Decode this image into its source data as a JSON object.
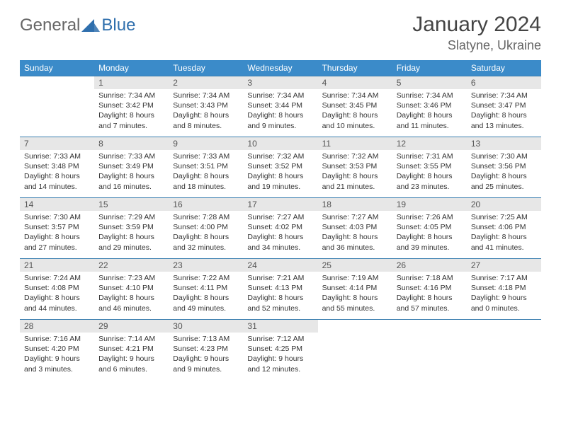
{
  "branding": {
    "word1": "General",
    "word2": "Blue",
    "logo_color_dark": "#666666",
    "logo_color_blue": "#2f6fad",
    "triangle_color": "#2f6fad"
  },
  "title": "January 2024",
  "location": "Slatyne, Ukraine",
  "colors": {
    "header_row_bg": "#3b8bc9",
    "header_row_text": "#ffffff",
    "daynum_bg": "#e7e7e7",
    "daynum_text": "#555555",
    "cell_divider": "#3b7fb0",
    "body_text": "#333333",
    "page_bg": "#ffffff"
  },
  "weekdays": [
    "Sunday",
    "Monday",
    "Tuesday",
    "Wednesday",
    "Thursday",
    "Friday",
    "Saturday"
  ],
  "weeks": [
    [
      null,
      {
        "n": "1",
        "sr": "Sunrise: 7:34 AM",
        "ss": "Sunset: 3:42 PM",
        "dl1": "Daylight: 8 hours",
        "dl2": "and 7 minutes."
      },
      {
        "n": "2",
        "sr": "Sunrise: 7:34 AM",
        "ss": "Sunset: 3:43 PM",
        "dl1": "Daylight: 8 hours",
        "dl2": "and 8 minutes."
      },
      {
        "n": "3",
        "sr": "Sunrise: 7:34 AM",
        "ss": "Sunset: 3:44 PM",
        "dl1": "Daylight: 8 hours",
        "dl2": "and 9 minutes."
      },
      {
        "n": "4",
        "sr": "Sunrise: 7:34 AM",
        "ss": "Sunset: 3:45 PM",
        "dl1": "Daylight: 8 hours",
        "dl2": "and 10 minutes."
      },
      {
        "n": "5",
        "sr": "Sunrise: 7:34 AM",
        "ss": "Sunset: 3:46 PM",
        "dl1": "Daylight: 8 hours",
        "dl2": "and 11 minutes."
      },
      {
        "n": "6",
        "sr": "Sunrise: 7:34 AM",
        "ss": "Sunset: 3:47 PM",
        "dl1": "Daylight: 8 hours",
        "dl2": "and 13 minutes."
      }
    ],
    [
      {
        "n": "7",
        "sr": "Sunrise: 7:33 AM",
        "ss": "Sunset: 3:48 PM",
        "dl1": "Daylight: 8 hours",
        "dl2": "and 14 minutes."
      },
      {
        "n": "8",
        "sr": "Sunrise: 7:33 AM",
        "ss": "Sunset: 3:49 PM",
        "dl1": "Daylight: 8 hours",
        "dl2": "and 16 minutes."
      },
      {
        "n": "9",
        "sr": "Sunrise: 7:33 AM",
        "ss": "Sunset: 3:51 PM",
        "dl1": "Daylight: 8 hours",
        "dl2": "and 18 minutes."
      },
      {
        "n": "10",
        "sr": "Sunrise: 7:32 AM",
        "ss": "Sunset: 3:52 PM",
        "dl1": "Daylight: 8 hours",
        "dl2": "and 19 minutes."
      },
      {
        "n": "11",
        "sr": "Sunrise: 7:32 AM",
        "ss": "Sunset: 3:53 PM",
        "dl1": "Daylight: 8 hours",
        "dl2": "and 21 minutes."
      },
      {
        "n": "12",
        "sr": "Sunrise: 7:31 AM",
        "ss": "Sunset: 3:55 PM",
        "dl1": "Daylight: 8 hours",
        "dl2": "and 23 minutes."
      },
      {
        "n": "13",
        "sr": "Sunrise: 7:30 AM",
        "ss": "Sunset: 3:56 PM",
        "dl1": "Daylight: 8 hours",
        "dl2": "and 25 minutes."
      }
    ],
    [
      {
        "n": "14",
        "sr": "Sunrise: 7:30 AM",
        "ss": "Sunset: 3:57 PM",
        "dl1": "Daylight: 8 hours",
        "dl2": "and 27 minutes."
      },
      {
        "n": "15",
        "sr": "Sunrise: 7:29 AM",
        "ss": "Sunset: 3:59 PM",
        "dl1": "Daylight: 8 hours",
        "dl2": "and 29 minutes."
      },
      {
        "n": "16",
        "sr": "Sunrise: 7:28 AM",
        "ss": "Sunset: 4:00 PM",
        "dl1": "Daylight: 8 hours",
        "dl2": "and 32 minutes."
      },
      {
        "n": "17",
        "sr": "Sunrise: 7:27 AM",
        "ss": "Sunset: 4:02 PM",
        "dl1": "Daylight: 8 hours",
        "dl2": "and 34 minutes."
      },
      {
        "n": "18",
        "sr": "Sunrise: 7:27 AM",
        "ss": "Sunset: 4:03 PM",
        "dl1": "Daylight: 8 hours",
        "dl2": "and 36 minutes."
      },
      {
        "n": "19",
        "sr": "Sunrise: 7:26 AM",
        "ss": "Sunset: 4:05 PM",
        "dl1": "Daylight: 8 hours",
        "dl2": "and 39 minutes."
      },
      {
        "n": "20",
        "sr": "Sunrise: 7:25 AM",
        "ss": "Sunset: 4:06 PM",
        "dl1": "Daylight: 8 hours",
        "dl2": "and 41 minutes."
      }
    ],
    [
      {
        "n": "21",
        "sr": "Sunrise: 7:24 AM",
        "ss": "Sunset: 4:08 PM",
        "dl1": "Daylight: 8 hours",
        "dl2": "and 44 minutes."
      },
      {
        "n": "22",
        "sr": "Sunrise: 7:23 AM",
        "ss": "Sunset: 4:10 PM",
        "dl1": "Daylight: 8 hours",
        "dl2": "and 46 minutes."
      },
      {
        "n": "23",
        "sr": "Sunrise: 7:22 AM",
        "ss": "Sunset: 4:11 PM",
        "dl1": "Daylight: 8 hours",
        "dl2": "and 49 minutes."
      },
      {
        "n": "24",
        "sr": "Sunrise: 7:21 AM",
        "ss": "Sunset: 4:13 PM",
        "dl1": "Daylight: 8 hours",
        "dl2": "and 52 minutes."
      },
      {
        "n": "25",
        "sr": "Sunrise: 7:19 AM",
        "ss": "Sunset: 4:14 PM",
        "dl1": "Daylight: 8 hours",
        "dl2": "and 55 minutes."
      },
      {
        "n": "26",
        "sr": "Sunrise: 7:18 AM",
        "ss": "Sunset: 4:16 PM",
        "dl1": "Daylight: 8 hours",
        "dl2": "and 57 minutes."
      },
      {
        "n": "27",
        "sr": "Sunrise: 7:17 AM",
        "ss": "Sunset: 4:18 PM",
        "dl1": "Daylight: 9 hours",
        "dl2": "and 0 minutes."
      }
    ],
    [
      {
        "n": "28",
        "sr": "Sunrise: 7:16 AM",
        "ss": "Sunset: 4:20 PM",
        "dl1": "Daylight: 9 hours",
        "dl2": "and 3 minutes."
      },
      {
        "n": "29",
        "sr": "Sunrise: 7:14 AM",
        "ss": "Sunset: 4:21 PM",
        "dl1": "Daylight: 9 hours",
        "dl2": "and 6 minutes."
      },
      {
        "n": "30",
        "sr": "Sunrise: 7:13 AM",
        "ss": "Sunset: 4:23 PM",
        "dl1": "Daylight: 9 hours",
        "dl2": "and 9 minutes."
      },
      {
        "n": "31",
        "sr": "Sunrise: 7:12 AM",
        "ss": "Sunset: 4:25 PM",
        "dl1": "Daylight: 9 hours",
        "dl2": "and 12 minutes."
      },
      null,
      null,
      null
    ]
  ]
}
